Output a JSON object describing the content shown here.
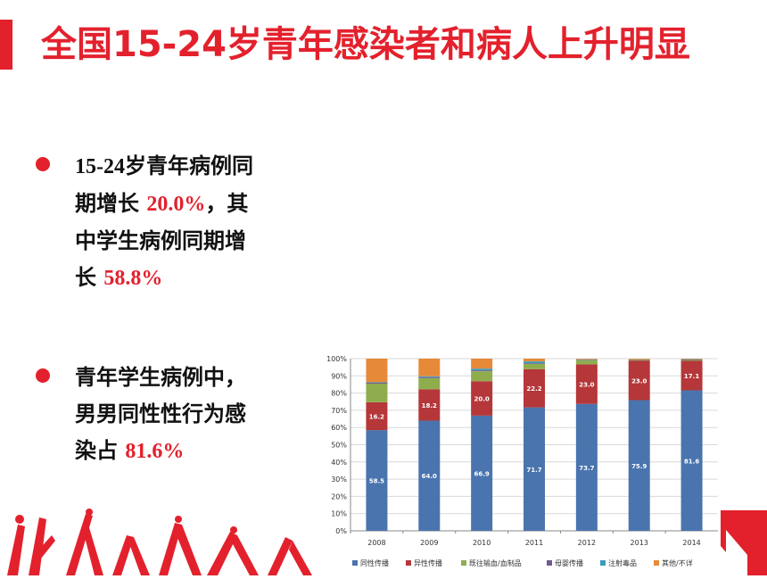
{
  "slide": {
    "title": "全国15-24岁青年感染者和病人上升明显"
  },
  "bullets": [
    {
      "lines": [
        [
          {
            "t": "15-24",
            "s": "num"
          },
          {
            "t": "岁青年病例同",
            "s": ""
          }
        ],
        [
          {
            "t": "期增长 ",
            "s": ""
          },
          {
            "t": "20.0%",
            "s": "hl"
          },
          {
            "t": "，其",
            "s": ""
          }
        ],
        [
          {
            "t": "中学生病例同期增",
            "s": ""
          }
        ],
        [
          {
            "t": "长 ",
            "s": ""
          },
          {
            "t": "58.8%",
            "s": "hl"
          }
        ]
      ]
    },
    {
      "lines": [
        [
          {
            "t": "青年学生病例中，",
            "s": ""
          }
        ],
        [
          {
            "t": "男男同性性行为感",
            "s": ""
          }
        ],
        [
          {
            "t": "染占 ",
            "s": ""
          },
          {
            "t": "81.6%",
            "s": "hl"
          }
        ]
      ]
    }
  ],
  "chart_data": {
    "type": "bar",
    "stacked": true,
    "categories": [
      "2008",
      "2009",
      "2010",
      "2011",
      "2012",
      "2013",
      "2014"
    ],
    "ylim": [
      0,
      100
    ],
    "yticks": [
      "0%",
      "10%",
      "20%",
      "30%",
      "40%",
      "50%",
      "60%",
      "70%",
      "80%",
      "90%",
      "100%"
    ],
    "series": [
      {
        "name": "同性传播",
        "color": "#4a74ae",
        "values": [
          58.5,
          64.0,
          66.9,
          71.7,
          73.7,
          75.9,
          81.6
        ],
        "labels": [
          "58.5",
          "64.0",
          "66.9",
          "71.7",
          "73.7",
          "75.9",
          "81.6"
        ]
      },
      {
        "name": "异性传播",
        "color": "#b5373a",
        "values": [
          16.2,
          18.2,
          20.0,
          22.2,
          23.0,
          23.0,
          17.1
        ],
        "labels": [
          "16.2",
          "18.2",
          "20.0",
          "22.2",
          "23.0",
          "23.0",
          "17.1"
        ]
      },
      {
        "name": "既往输血/血制品",
        "color": "#8fad4d",
        "values": [
          10.8,
          6.5,
          5.8,
          3.1,
          2.4,
          0.4,
          0.5
        ],
        "labels": []
      },
      {
        "name": "母婴传播",
        "color": "#6e5a92",
        "values": [
          0.5,
          0.6,
          0.5,
          0.4,
          0.3,
          0.2,
          0.3
        ],
        "labels": []
      },
      {
        "name": "注射毒品",
        "color": "#3e9cb8",
        "values": [
          0.3,
          0.5,
          1.0,
          1.0,
          0.2,
          0.1,
          0.2
        ],
        "labels": []
      },
      {
        "name": "其他/不详",
        "color": "#e68a3a",
        "values": [
          13.7,
          10.2,
          5.8,
          1.6,
          0.4,
          0.4,
          0.3
        ],
        "labels": []
      }
    ],
    "legend_position": "bottom",
    "grid": true
  }
}
